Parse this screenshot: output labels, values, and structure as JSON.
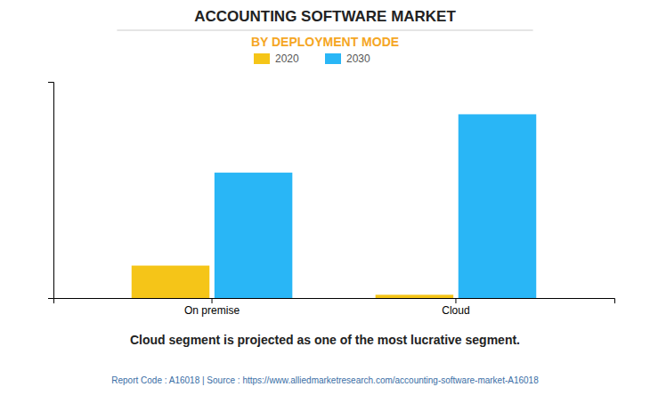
{
  "chart_data": {
    "type": "bar",
    "title": "ACCOUNTING SOFTWARE MARKET",
    "subtitle": "BY DEPLOYMENT MODE",
    "categories": [
      "On premise",
      "Cloud"
    ],
    "series": [
      {
        "name": "2020",
        "color": "#F5C518",
        "values": [
          1.5,
          0.15
        ]
      },
      {
        "name": "2030",
        "color": "#29B6F6",
        "values": [
          5.8,
          8.5
        ]
      }
    ],
    "ylim": [
      0,
      10
    ],
    "yticks": [],
    "grid": false,
    "legend": "top",
    "tick_labels": "x",
    "annotations": [
      "Cloud segment is projected as one of the most lucrative segment.",
      "Report Code : A16018  |  Source : https://www.alliedmarketresearch.com/accounting-software-market-A16018"
    ]
  }
}
